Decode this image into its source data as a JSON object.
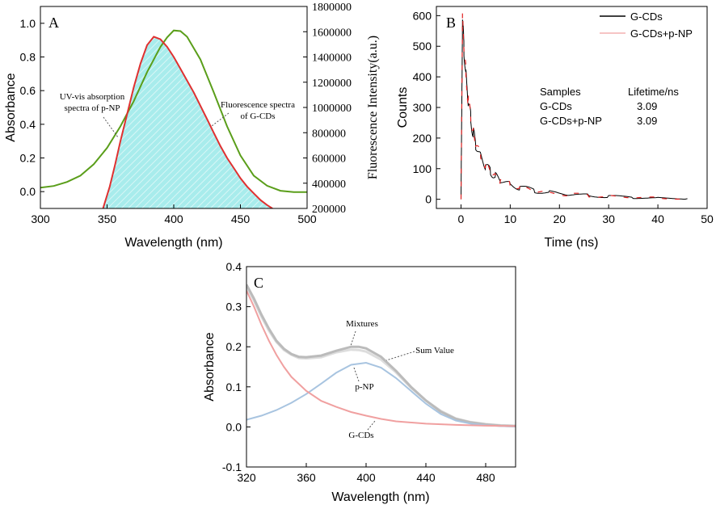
{
  "chart_data": [
    {
      "type": "line",
      "panel_label": "A",
      "xlabel": "Wavelength (nm)",
      "ylabel": "Absorbance",
      "ylabel_right": "Fluorescence Intensity(a.u.)",
      "xlim": [
        300,
        500
      ],
      "ylim": [
        -0.1,
        1.1
      ],
      "y2lim": [
        200000,
        1800000
      ],
      "xticks": [
        "300",
        "350",
        "400",
        "450",
        "500"
      ],
      "yticks": [
        "0.0",
        "0.2",
        "0.4",
        "0.6",
        "0.8",
        "1.0"
      ],
      "y2ticks": [
        "200000",
        "400000",
        "600000",
        "800000",
        "1000000",
        "1200000",
        "1400000",
        "1600000",
        "1800000"
      ],
      "annotations": [
        {
          "text": "UV-vis absorption",
          "target": "absorption"
        },
        {
          "text": "spectra of p-NP",
          "target": "absorption"
        },
        {
          "text": "Fluorescence spectra",
          "target": "fluorescence"
        },
        {
          "text": "of G-CDs",
          "target": "fluorescence"
        }
      ],
      "series": [
        {
          "name": "UV-vis absorption spectra of p-NP",
          "axis": "left",
          "color": "#e03030",
          "fill": "#a8ecec",
          "x": [
            347,
            352,
            356,
            360,
            365,
            370,
            375,
            380,
            385,
            390,
            395,
            400,
            405,
            410,
            415,
            420,
            425,
            430,
            435,
            440,
            445,
            450,
            455,
            460,
            465,
            470,
            474
          ],
          "y": [
            -0.1,
            0.03,
            0.16,
            0.3,
            0.46,
            0.62,
            0.76,
            0.87,
            0.92,
            0.905,
            0.86,
            0.8,
            0.73,
            0.66,
            0.59,
            0.51,
            0.43,
            0.35,
            0.27,
            0.2,
            0.14,
            0.08,
            0.03,
            -0.01,
            -0.05,
            -0.08,
            -0.1
          ]
        },
        {
          "name": "Fluorescence spectra of G-CDs",
          "axis": "right",
          "color": "#5a9e1a",
          "x": [
            300,
            310,
            320,
            330,
            340,
            350,
            360,
            370,
            380,
            390,
            395,
            400,
            405,
            410,
            420,
            430,
            440,
            450,
            460,
            470,
            480,
            490,
            500
          ],
          "y": [
            365000,
            378000,
            410000,
            460000,
            550000,
            680000,
            850000,
            1050000,
            1280000,
            1480000,
            1555000,
            1610000,
            1605000,
            1560000,
            1380000,
            1120000,
            850000,
            620000,
            460000,
            380000,
            340000,
            330000,
            330000
          ]
        }
      ]
    },
    {
      "type": "line",
      "panel_label": "B",
      "xlabel": "Time (ns)",
      "ylabel": "Counts",
      "xlim": [
        -5,
        50
      ],
      "ylim": [
        -30,
        630
      ],
      "xticks": [
        "0",
        "10",
        "20",
        "30",
        "40",
        "50"
      ],
      "yticks": [
        "0",
        "100",
        "200",
        "300",
        "400",
        "500",
        "600"
      ],
      "legend": {
        "position": "top-right",
        "entries": [
          "G-CDs",
          "G-CDs+p-NP"
        ]
      },
      "table": {
        "headers": [
          "Samples",
          "Lifetime/ns"
        ],
        "rows": [
          [
            "G-CDs",
            "3.09"
          ],
          [
            "G-CDs+p-NP",
            "3.09"
          ]
        ]
      },
      "series": [
        {
          "name": "G-CDs",
          "color": "#000000",
          "x": [
            0,
            0.3,
            0.6,
            1,
            1.5,
            2,
            2.5,
            3,
            4,
            5,
            6,
            7,
            8,
            10,
            12,
            15,
            18,
            22,
            26,
            30,
            35,
            40,
            46
          ],
          "y": [
            0,
            565,
            500,
            400,
            320,
            260,
            215,
            180,
            140,
            110,
            90,
            75,
            63,
            48,
            38,
            28,
            22,
            16,
            12,
            9,
            6,
            4,
            2
          ]
        },
        {
          "name": "G-CDs+p-NP",
          "color": "#e02020",
          "x": [
            0,
            0.3,
            0.6,
            1,
            1.5,
            2,
            2.5,
            3,
            4,
            5,
            6,
            7,
            8,
            10,
            12,
            15,
            18,
            22,
            26,
            30,
            35,
            40,
            46
          ],
          "y": [
            0,
            575,
            505,
            405,
            322,
            262,
            216,
            181,
            141,
            111,
            90,
            75,
            63,
            48,
            38,
            28,
            22,
            16,
            12,
            9,
            6,
            4,
            2
          ]
        }
      ]
    },
    {
      "type": "line",
      "panel_label": "C",
      "xlabel": "Wavelength (nm)",
      "ylabel": "Absorbance",
      "xlim": [
        320,
        500
      ],
      "ylim": [
        -0.1,
        0.4
      ],
      "xticks": [
        "320",
        "360",
        "400",
        "440",
        "480"
      ],
      "yticks": [
        "-0.1",
        "0.0",
        "0.1",
        "0.2",
        "0.3",
        "0.4"
      ],
      "annotations": [
        {
          "text": "Mixtures",
          "target": "Mixtures"
        },
        {
          "text": "Sum Value",
          "target": "Sum Value"
        },
        {
          "text": "p-NP",
          "target": "p-NP"
        },
        {
          "text": "G-CDs",
          "target": "G-CDs"
        }
      ],
      "series": [
        {
          "name": "G-CDs",
          "color": "#f0a0a0",
          "x": [
            320,
            325,
            330,
            335,
            340,
            345,
            350,
            360,
            370,
            380,
            390,
            400,
            410,
            420,
            440,
            460,
            480,
            500
          ],
          "y": [
            0.34,
            0.3,
            0.255,
            0.215,
            0.18,
            0.15,
            0.125,
            0.09,
            0.065,
            0.05,
            0.037,
            0.028,
            0.02,
            0.014,
            0.008,
            0.005,
            0.003,
            0.002
          ]
        },
        {
          "name": "p-NP",
          "color": "#a8c4e0",
          "x": [
            320,
            330,
            340,
            350,
            360,
            370,
            380,
            390,
            400,
            410,
            420,
            430,
            440,
            450,
            460,
            470,
            480,
            490,
            500
          ],
          "y": [
            0.018,
            0.028,
            0.042,
            0.06,
            0.082,
            0.108,
            0.135,
            0.155,
            0.16,
            0.148,
            0.122,
            0.09,
            0.058,
            0.032,
            0.016,
            0.008,
            0.004,
            0.002,
            0.001
          ]
        },
        {
          "name": "Mixtures",
          "color": "#bbbbbb",
          "x": [
            320,
            325,
            330,
            335,
            340,
            345,
            350,
            355,
            360,
            370,
            380,
            390,
            395,
            400,
            410,
            420,
            430,
            440,
            450,
            460,
            470,
            480,
            490,
            500
          ],
          "y": [
            0.355,
            0.32,
            0.28,
            0.245,
            0.215,
            0.195,
            0.182,
            0.175,
            0.174,
            0.178,
            0.19,
            0.2,
            0.2,
            0.196,
            0.175,
            0.14,
            0.1,
            0.066,
            0.038,
            0.02,
            0.011,
            0.006,
            0.003,
            0.002
          ]
        },
        {
          "name": "Sum Value",
          "color": "#dddddd",
          "x": [
            320,
            325,
            330,
            335,
            340,
            345,
            350,
            355,
            360,
            370,
            380,
            390,
            395,
            400,
            410,
            420,
            430,
            440,
            450,
            460,
            470,
            480,
            490,
            500
          ],
          "y": [
            0.35,
            0.315,
            0.275,
            0.24,
            0.212,
            0.192,
            0.18,
            0.172,
            0.171,
            0.174,
            0.186,
            0.193,
            0.192,
            0.188,
            0.168,
            0.136,
            0.098,
            0.066,
            0.04,
            0.021,
            0.012,
            0.007,
            0.004,
            0.003
          ]
        }
      ]
    }
  ]
}
